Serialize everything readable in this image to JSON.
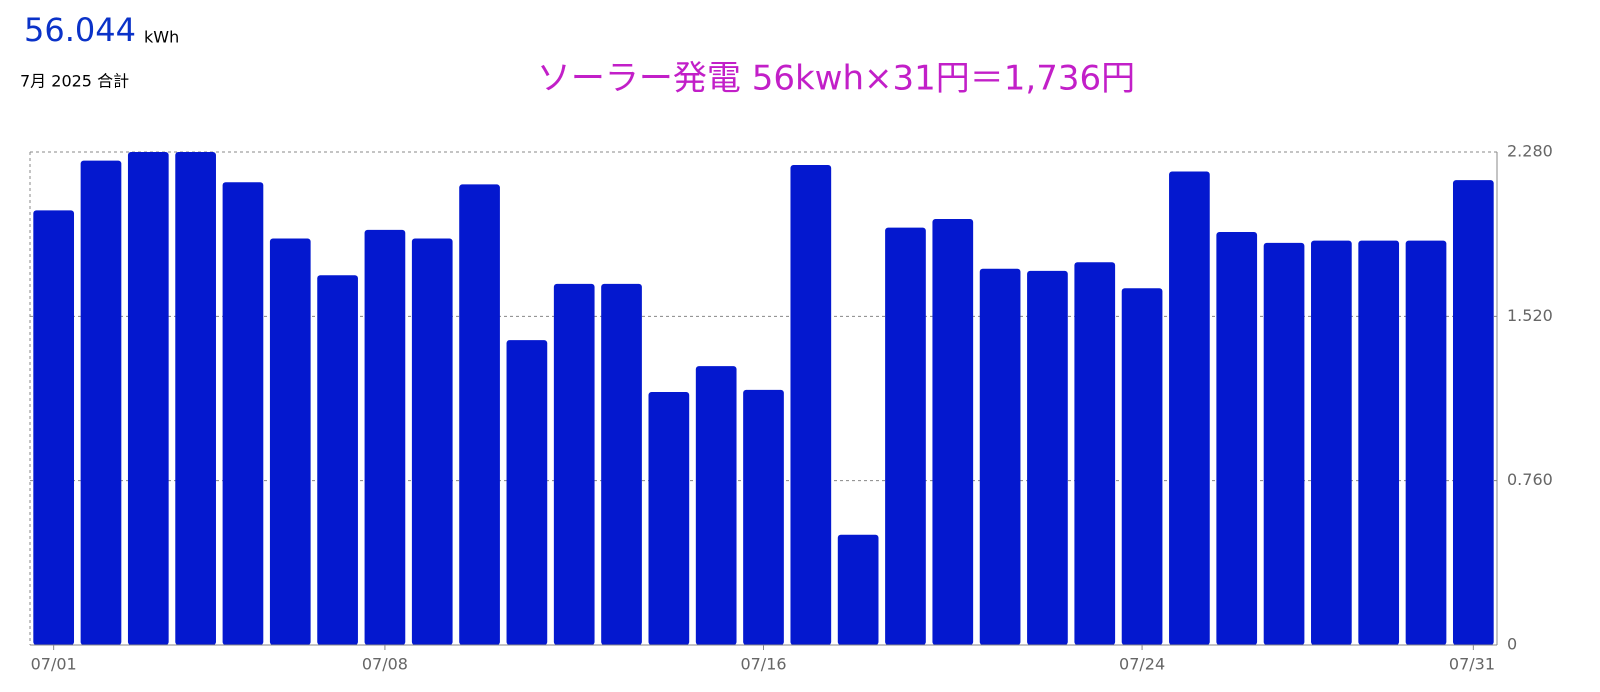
{
  "header": {
    "total": "56.044",
    "unit": "kWh",
    "period": "7月 2025 合計"
  },
  "chart_data": {
    "type": "bar",
    "annotation": "ソーラー発電 56kwh×31円＝1,736円",
    "categories": [
      "07/01",
      null,
      null,
      null,
      null,
      null,
      null,
      "07/08",
      null,
      null,
      null,
      null,
      null,
      null,
      null,
      "07/16",
      null,
      null,
      null,
      null,
      null,
      null,
      null,
      "07/24",
      null,
      null,
      null,
      null,
      null,
      null,
      "07/31"
    ],
    "values": [
      2.01,
      2.24,
      2.28,
      2.28,
      2.14,
      1.88,
      1.71,
      1.92,
      1.88,
      2.13,
      1.41,
      1.67,
      1.67,
      1.17,
      1.29,
      1.18,
      2.22,
      0.51,
      1.93,
      1.97,
      1.74,
      1.73,
      1.77,
      1.65,
      2.19,
      1.91,
      1.86,
      1.87,
      1.87,
      1.87,
      2.15
    ],
    "color": "#0418cf",
    "ylim": [
      0,
      2.28
    ],
    "yticks": [
      0,
      {
        "value": 0.76,
        "label": "0.760"
      },
      {
        "value": 1.52,
        "label": "1.520"
      },
      {
        "value": 2.28,
        "label": "2.280"
      }
    ],
    "y_axis_side": "right",
    "grid": true
  }
}
